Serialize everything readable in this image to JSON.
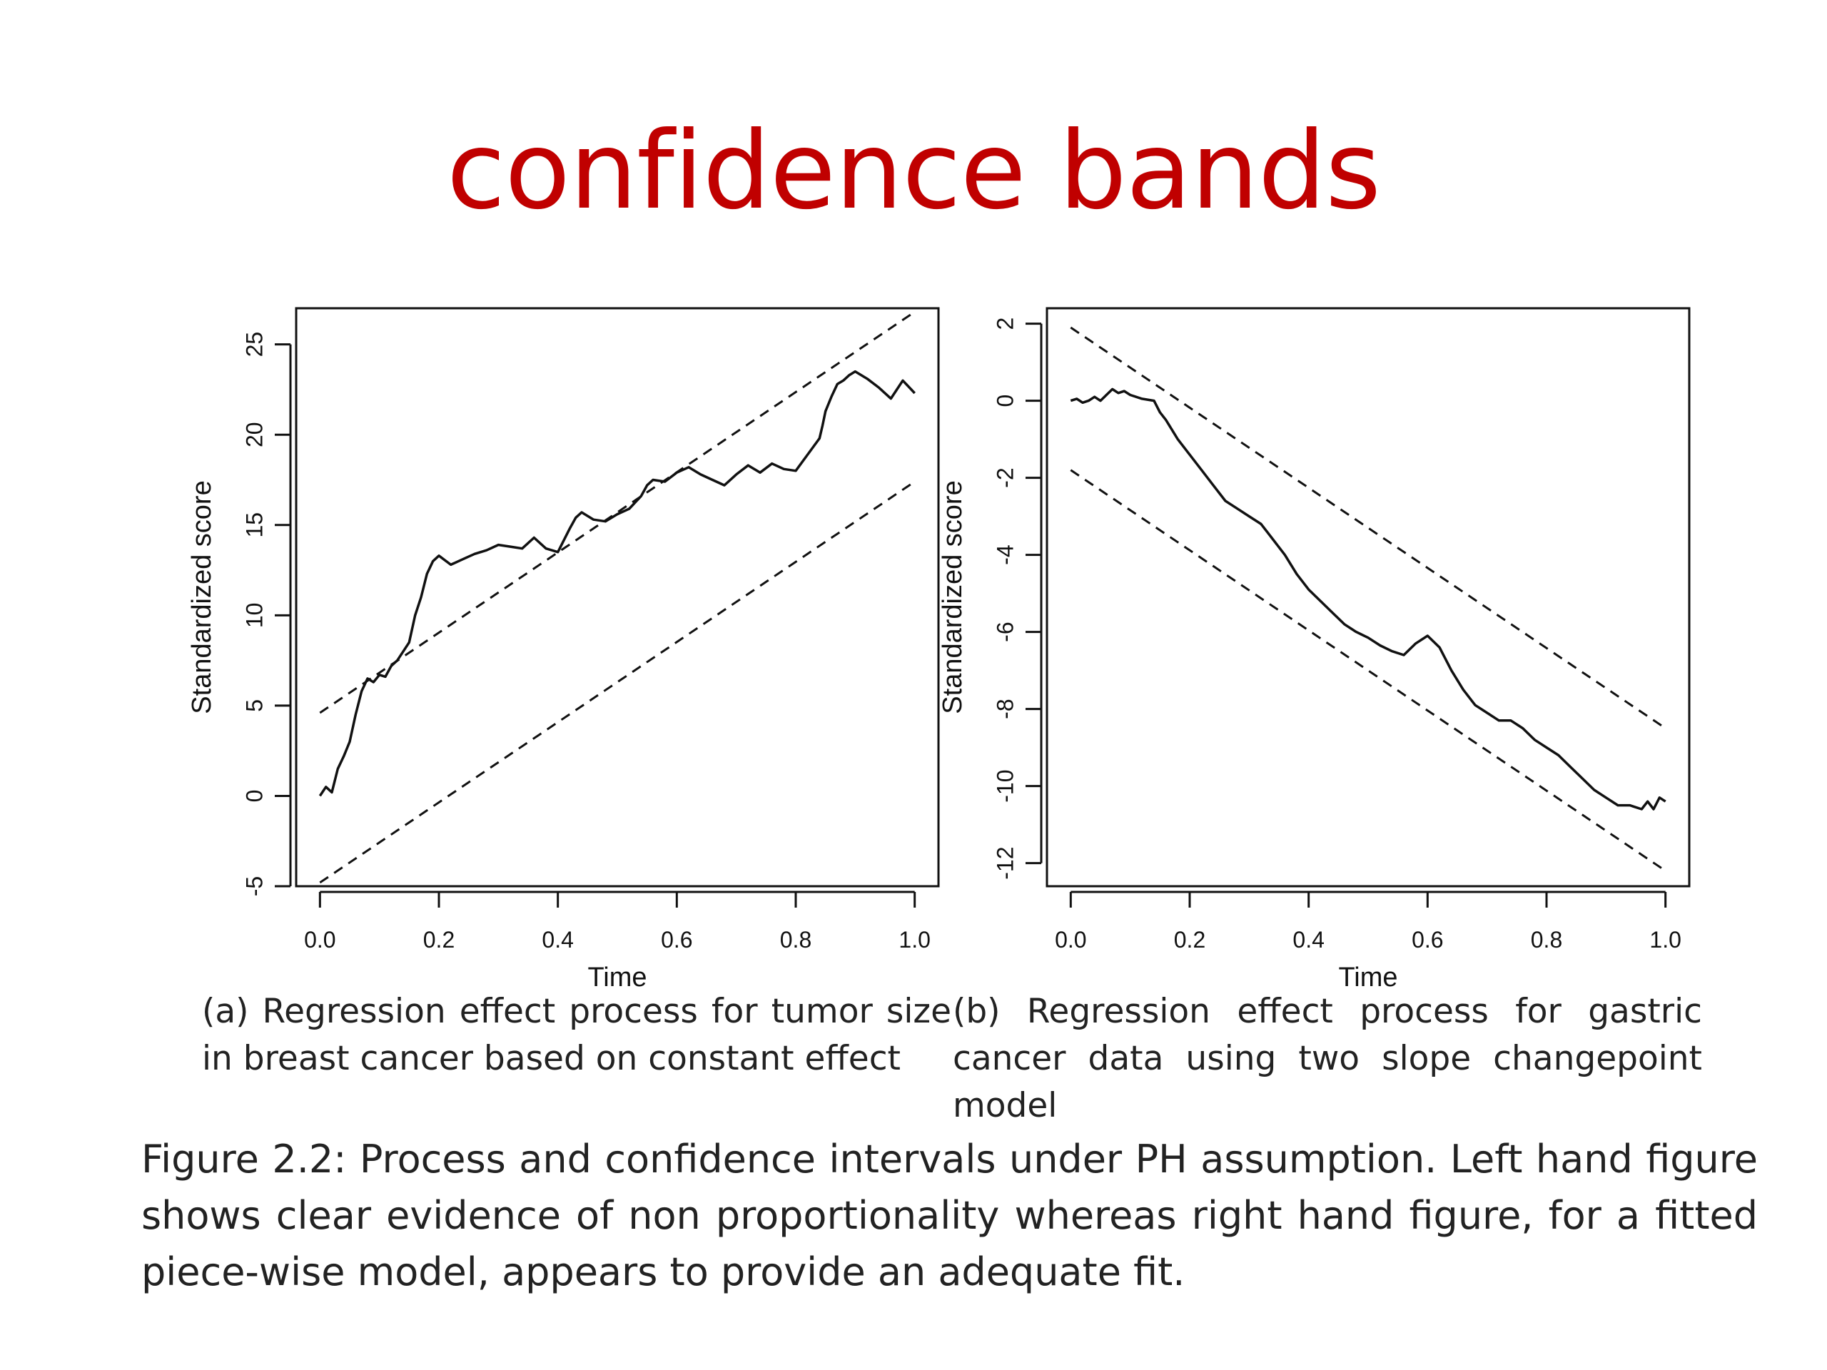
{
  "slide": {
    "title": "confidence bands"
  },
  "chart_data": [
    {
      "type": "line",
      "xlabel": "Time",
      "ylabel": "Standardized score",
      "xlim": [
        0.0,
        1.0
      ],
      "ylim": [
        -5,
        27
      ],
      "x_ticks": [
        "0.0",
        "0.2",
        "0.4",
        "0.6",
        "0.8",
        "1.0"
      ],
      "y_ticks": [
        "-5",
        "0",
        "5",
        "10",
        "15",
        "20",
        "25"
      ],
      "grid": false,
      "caption": "(a) Regression effect process for tumor size in breast cancer based on constant effect",
      "series": [
        {
          "style": "solid",
          "x": [
            0.0,
            0.01,
            0.02,
            0.03,
            0.04,
            0.05,
            0.06,
            0.07,
            0.08,
            0.09,
            0.1,
            0.11,
            0.12,
            0.13,
            0.14,
            0.15,
            0.16,
            0.17,
            0.18,
            0.19,
            0.2,
            0.22,
            0.24,
            0.26,
            0.28,
            0.3,
            0.32,
            0.34,
            0.36,
            0.38,
            0.4,
            0.42,
            0.43,
            0.44,
            0.46,
            0.48,
            0.5,
            0.52,
            0.54,
            0.55,
            0.56,
            0.58,
            0.6,
            0.62,
            0.64,
            0.66,
            0.68,
            0.7,
            0.72,
            0.74,
            0.76,
            0.78,
            0.8,
            0.82,
            0.84,
            0.845,
            0.85,
            0.86,
            0.87,
            0.88,
            0.89,
            0.9,
            0.92,
            0.94,
            0.96,
            0.97,
            0.98,
            1.0
          ],
          "y": [
            0.0,
            0.5,
            0.2,
            1.5,
            2.2,
            3.0,
            4.5,
            5.8,
            6.5,
            6.3,
            6.7,
            6.6,
            7.2,
            7.5,
            8.0,
            8.5,
            10.0,
            11.0,
            12.3,
            13.0,
            13.3,
            12.8,
            13.1,
            13.4,
            13.6,
            13.9,
            13.8,
            13.7,
            14.3,
            13.7,
            13.5,
            14.8,
            15.4,
            15.7,
            15.3,
            15.2,
            15.6,
            15.9,
            16.6,
            17.2,
            17.5,
            17.4,
            17.9,
            18.2,
            17.8,
            17.5,
            17.2,
            17.8,
            18.3,
            17.9,
            18.4,
            18.1,
            18.0,
            18.9,
            19.8,
            20.5,
            21.3,
            22.1,
            22.8,
            23.0,
            23.3,
            23.5,
            23.1,
            22.6,
            22.0,
            22.5,
            23.0,
            22.3
          ]
        },
        {
          "style": "dashed",
          "x": [
            0.0,
            1.0
          ],
          "y": [
            4.6,
            26.8
          ]
        },
        {
          "style": "dashed",
          "x": [
            0.0,
            1.0
          ],
          "y": [
            -4.8,
            17.4
          ]
        }
      ]
    },
    {
      "type": "line",
      "xlabel": "Time",
      "ylabel": "Standardized score",
      "xlim": [
        0.0,
        1.0
      ],
      "ylim": [
        -12.6,
        2.4
      ],
      "x_ticks": [
        "0.0",
        "0.2",
        "0.4",
        "0.6",
        "0.8",
        "1.0"
      ],
      "y_ticks": [
        "-12",
        "-10",
        "-8",
        "-6",
        "-4",
        "-2",
        "0",
        "2"
      ],
      "grid": false,
      "caption": "(b) Regression effect process for gastric cancer data using two slope changepoint model",
      "series": [
        {
          "style": "solid",
          "x": [
            0.0,
            0.01,
            0.02,
            0.03,
            0.04,
            0.05,
            0.06,
            0.07,
            0.08,
            0.09,
            0.1,
            0.12,
            0.14,
            0.15,
            0.16,
            0.18,
            0.2,
            0.22,
            0.24,
            0.26,
            0.28,
            0.3,
            0.32,
            0.34,
            0.36,
            0.38,
            0.4,
            0.42,
            0.44,
            0.46,
            0.48,
            0.5,
            0.52,
            0.54,
            0.56,
            0.58,
            0.6,
            0.62,
            0.64,
            0.66,
            0.68,
            0.7,
            0.72,
            0.74,
            0.76,
            0.78,
            0.8,
            0.82,
            0.84,
            0.86,
            0.88,
            0.9,
            0.92,
            0.94,
            0.96,
            0.97,
            0.98,
            0.99,
            1.0
          ],
          "y": [
            0.0,
            0.05,
            -0.05,
            0.0,
            0.1,
            0.0,
            0.15,
            0.3,
            0.2,
            0.25,
            0.15,
            0.05,
            0.0,
            -0.3,
            -0.5,
            -1.0,
            -1.4,
            -1.8,
            -2.2,
            -2.6,
            -2.8,
            -3.0,
            -3.2,
            -3.6,
            -4.0,
            -4.5,
            -4.9,
            -5.2,
            -5.5,
            -5.8,
            -6.0,
            -6.15,
            -6.35,
            -6.5,
            -6.6,
            -6.3,
            -6.1,
            -6.4,
            -7.0,
            -7.5,
            -7.9,
            -8.1,
            -8.3,
            -8.3,
            -8.5,
            -8.8,
            -9.0,
            -9.2,
            -9.5,
            -9.8,
            -10.1,
            -10.3,
            -10.5,
            -10.5,
            -10.6,
            -10.4,
            -10.6,
            -10.3,
            -10.4
          ]
        },
        {
          "style": "dashed",
          "x": [
            0.0,
            1.0
          ],
          "y": [
            1.9,
            -8.5
          ]
        },
        {
          "style": "dashed",
          "x": [
            0.0,
            1.0
          ],
          "y": [
            -1.8,
            -12.2
          ]
        }
      ]
    }
  ],
  "figure_caption": "Figure 2.2: Process and confidence intervals under PH assumption. Left hand figure shows clear evidence of non proportionality whereas right hand figure, for a fitted piece-wise model, appears to provide an adequate fit."
}
